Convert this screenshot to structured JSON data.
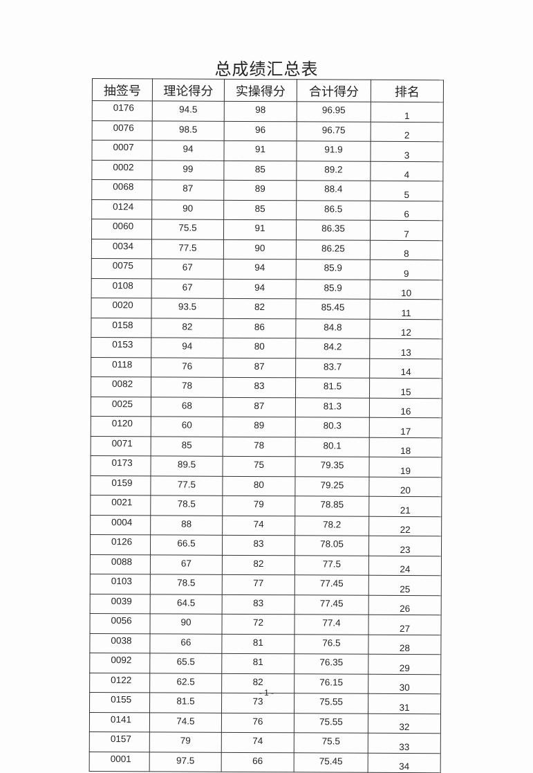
{
  "title": "总成绩汇总表",
  "columns": [
    "抽签号",
    "理论得分",
    "实操得分",
    "合计得分",
    "排名"
  ],
  "rows": [
    [
      "0176",
      "94.5",
      "98",
      "96.95",
      "1"
    ],
    [
      "0076",
      "98.5",
      "96",
      "96.75",
      "2"
    ],
    [
      "0007",
      "94",
      "91",
      "91.9",
      "3"
    ],
    [
      "0002",
      "99",
      "85",
      "89.2",
      "4"
    ],
    [
      "0068",
      "87",
      "89",
      "88.4",
      "5"
    ],
    [
      "0124",
      "90",
      "85",
      "86.5",
      "6"
    ],
    [
      "0060",
      "75.5",
      "91",
      "86.35",
      "7"
    ],
    [
      "0034",
      "77.5",
      "90",
      "86.25",
      "8"
    ],
    [
      "0075",
      "67",
      "94",
      "85.9",
      "9"
    ],
    [
      "0108",
      "67",
      "94",
      "85.9",
      "10"
    ],
    [
      "0020",
      "93.5",
      "82",
      "85.45",
      "11"
    ],
    [
      "0158",
      "82",
      "86",
      "84.8",
      "12"
    ],
    [
      "0153",
      "94",
      "80",
      "84.2",
      "13"
    ],
    [
      "0118",
      "76",
      "87",
      "83.7",
      "14"
    ],
    [
      "0082",
      "78",
      "83",
      "81.5",
      "15"
    ],
    [
      "0025",
      "68",
      "87",
      "81.3",
      "16"
    ],
    [
      "0120",
      "60",
      "89",
      "80.3",
      "17"
    ],
    [
      "0071",
      "85",
      "78",
      "80.1",
      "18"
    ],
    [
      "0173",
      "89.5",
      "75",
      "79.35",
      "19"
    ],
    [
      "0159",
      "77.5",
      "80",
      "79.25",
      "20"
    ],
    [
      "0021",
      "78.5",
      "79",
      "78.85",
      "21"
    ],
    [
      "0004",
      "88",
      "74",
      "78.2",
      "22"
    ],
    [
      "0126",
      "66.5",
      "83",
      "78.05",
      "23"
    ],
    [
      "0088",
      "67",
      "82",
      "77.5",
      "24"
    ],
    [
      "0103",
      "78.5",
      "77",
      "77.45",
      "25"
    ],
    [
      "0039",
      "64.5",
      "83",
      "77.45",
      "26"
    ],
    [
      "0056",
      "90",
      "72",
      "77.4",
      "27"
    ],
    [
      "0038",
      "66",
      "81",
      "76.5",
      "28"
    ],
    [
      "0092",
      "65.5",
      "81",
      "76.35",
      "29"
    ],
    [
      "0122",
      "62.5",
      "82",
      "76.15",
      "30"
    ],
    [
      "0155",
      "81.5",
      "73",
      "75.55",
      "31"
    ],
    [
      "0141",
      "74.5",
      "76",
      "75.55",
      "32"
    ],
    [
      "0157",
      "79",
      "74",
      "75.5",
      "33"
    ],
    [
      "0001",
      "97.5",
      "66",
      "75.45",
      "34"
    ]
  ],
  "page_number": "- 1 -"
}
